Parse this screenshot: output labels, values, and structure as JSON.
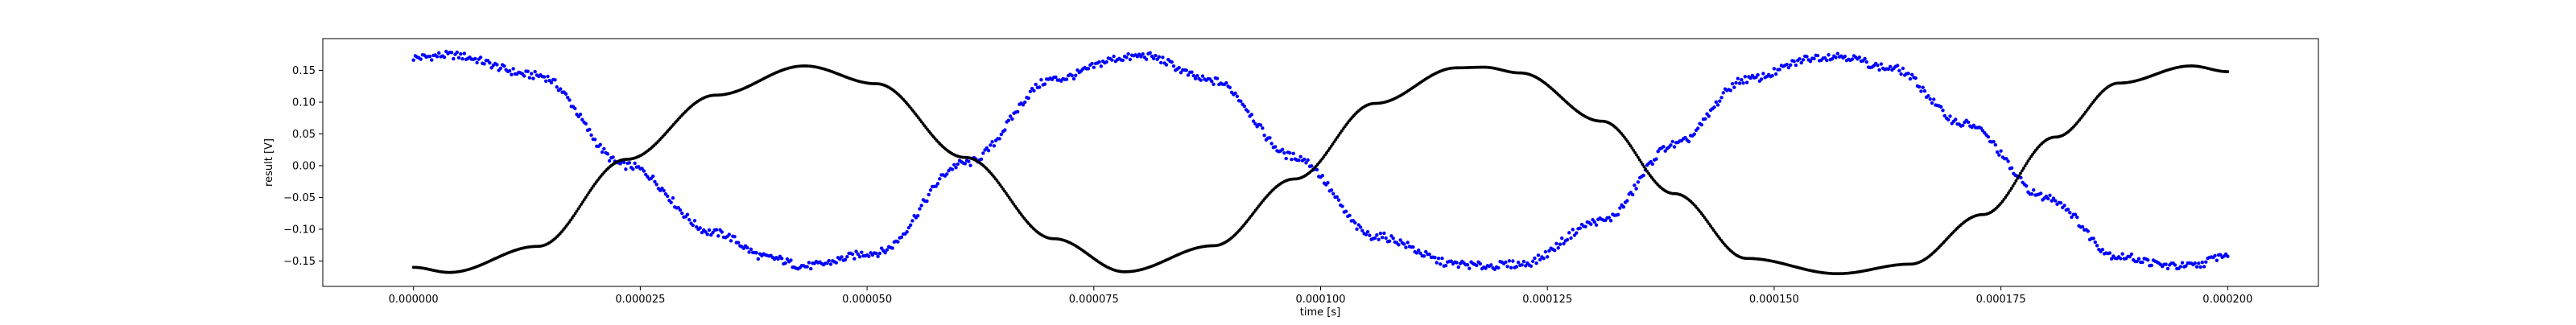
{
  "chart_data": {
    "type": "scatter",
    "title": "",
    "xlabel": "time [s]",
    "ylabel": "result [V]",
    "xlim": [
      -1e-05,
      0.00021
    ],
    "ylim": [
      -0.19,
      0.2
    ],
    "x_ticks": [
      0.0,
      2.5e-05,
      5e-05,
      7.5e-05,
      0.0001,
      0.000125,
      0.00015,
      0.000175,
      0.0002
    ],
    "x_tick_labels": [
      "0.000000",
      "0.000025",
      "0.000050",
      "0.000075",
      "0.000100",
      "0.000125",
      "0.000150",
      "0.000175",
      "0.000200"
    ],
    "y_ticks": [
      -0.15,
      -0.1,
      -0.05,
      0.0,
      0.05,
      0.1,
      0.15
    ],
    "y_tick_labels": [
      "−0.15",
      "−0.10",
      "−0.05",
      "0.00",
      "0.05",
      "0.10",
      "0.15"
    ],
    "grid": false,
    "legend": "none",
    "series": [
      {
        "color": "#0000ff",
        "x": [
          0.0,
          3.92e-06,
          1.37e-05,
          2.35e-05,
          3.33e-05,
          3.92e-05,
          4.31e-05,
          5.1e-05,
          6.08e-05,
          7.06e-05,
          7.84e-05,
          8.04e-05,
          8.82e-05,
          9.71e-05,
          0.000106,
          0.000115,
          0.000118,
          0.000122,
          0.000131,
          0.000139,
          0.000147,
          0.000155,
          0.000157,
          0.000163,
          0.000171,
          0.00018,
          0.000188,
          0.000194,
          0.000196,
          0.0002
        ],
        "y": [
          0.17,
          0.174,
          0.142,
          0.0,
          -0.106,
          -0.145,
          -0.158,
          -0.137,
          0.004,
          0.136,
          0.17,
          0.173,
          0.133,
          0.014,
          -0.111,
          -0.155,
          -0.158,
          -0.155,
          -0.087,
          0.033,
          0.136,
          0.171,
          0.173,
          0.153,
          0.066,
          -0.05,
          -0.143,
          -0.158,
          -0.158,
          -0.14
        ]
      },
      {
        "color": "#000000",
        "x": [
          0.0,
          3.92e-06,
          1.37e-05,
          2.35e-05,
          3.33e-05,
          4.31e-05,
          5.1e-05,
          6.08e-05,
          7.06e-05,
          7.84e-05,
          8.82e-05,
          9.71e-05,
          0.000106,
          0.000115,
          0.000118,
          0.000122,
          0.000131,
          0.000139,
          0.000147,
          0.000157,
          0.000165,
          0.000173,
          0.000181,
          0.000188,
          0.000196,
          0.0002
        ],
        "y": [
          -0.16,
          -0.168,
          -0.127,
          0.01,
          0.111,
          0.157,
          0.129,
          0.013,
          -0.115,
          -0.167,
          -0.126,
          -0.021,
          0.098,
          0.154,
          0.155,
          0.146,
          0.07,
          -0.044,
          -0.146,
          -0.17,
          -0.155,
          -0.077,
          0.045,
          0.13,
          0.157,
          0.148
        ]
      }
    ]
  }
}
